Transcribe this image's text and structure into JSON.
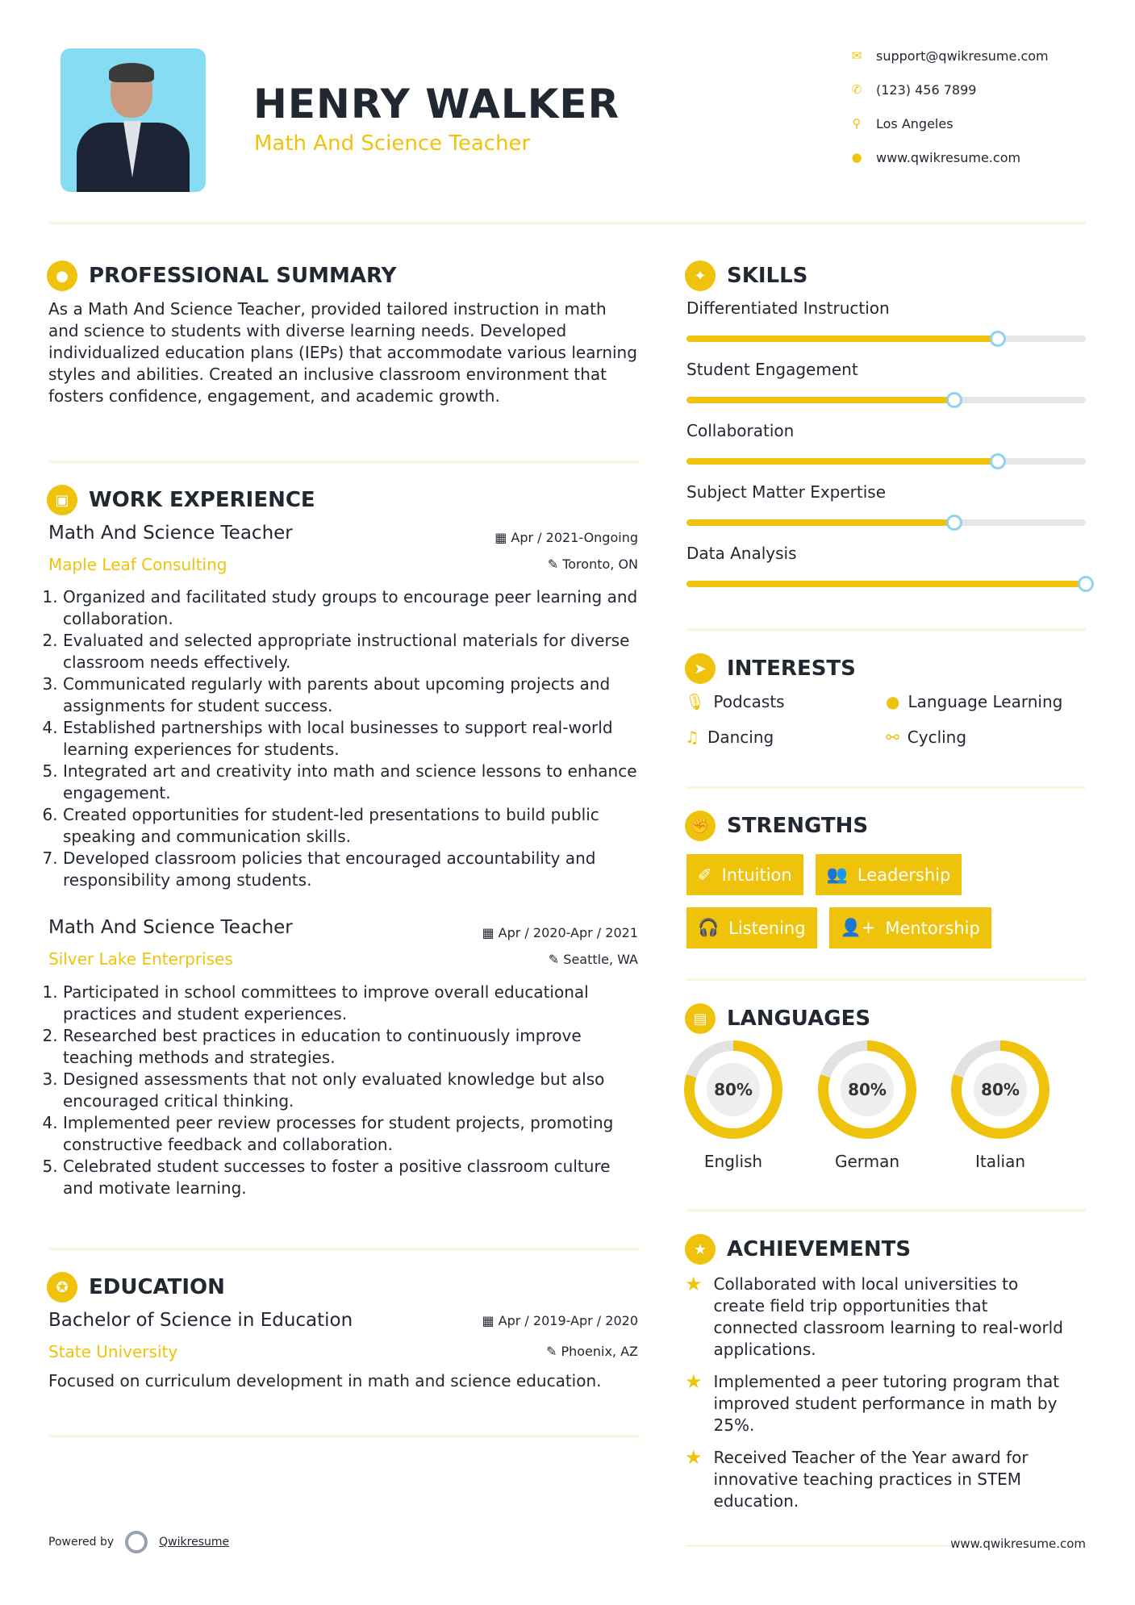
{
  "header": {
    "name": "HENRY WALKER",
    "title": "Math And Science Teacher",
    "contacts": [
      {
        "icon": "envelope-icon",
        "text": "support@qwikresume.com"
      },
      {
        "icon": "phone-icon",
        "text": "(123) 456 7899"
      },
      {
        "icon": "map-pin-icon",
        "text": "Los Angeles"
      },
      {
        "icon": "globe-icon",
        "text": "www.qwikresume.com"
      }
    ]
  },
  "summary": {
    "heading": "PROFESSIONAL SUMMARY",
    "text": "As a Math And Science Teacher, provided tailored instruction in math and science to students with diverse learning needs. Developed individualized education plans (IEPs) that accommodate various learning styles and abilities. Created an inclusive classroom environment that fosters confidence, engagement, and academic growth."
  },
  "work": {
    "heading": "WORK EXPERIENCE",
    "jobs": [
      {
        "title": "Math And Science Teacher",
        "date": "Apr / 2021-Ongoing",
        "company": "Maple Leaf Consulting",
        "location": "Toronto, ON",
        "bullets": [
          "Organized and facilitated study groups to encourage peer learning and collaboration.",
          "Evaluated and selected appropriate instructional materials for diverse classroom needs effectively.",
          "Communicated regularly with parents about upcoming projects and assignments for student success.",
          "Established partnerships with local businesses to support real-world learning experiences for students.",
          "Integrated art and creativity into math and science lessons to enhance engagement.",
          "Created opportunities for student-led presentations to build public speaking and communication skills.",
          "Developed classroom policies that encouraged accountability and responsibility among students."
        ]
      },
      {
        "title": "Math And Science Teacher",
        "date": "Apr / 2020-Apr / 2021",
        "company": "Silver Lake Enterprises",
        "location": "Seattle, WA",
        "bullets": [
          "Participated in school committees to improve overall educational practices and student experiences.",
          "Researched best practices in education to continuously improve teaching methods and strategies.",
          "Designed assessments that not only evaluated knowledge but also encouraged critical thinking.",
          "Implemented peer review processes for student projects, promoting constructive feedback and collaboration.",
          "Celebrated student successes to foster a positive classroom culture and motivate learning."
        ]
      }
    ]
  },
  "education": {
    "heading": "EDUCATION",
    "degree": "Bachelor of Science in Education",
    "date": "Apr / 2019-Apr / 2020",
    "school": "State University",
    "location": "Phoenix, AZ",
    "description": "Focused on curriculum development in math and science education."
  },
  "skills": {
    "heading": "SKILLS",
    "items": [
      {
        "name": "Differentiated Instruction",
        "level": 78
      },
      {
        "name": "Student Engagement",
        "level": 67
      },
      {
        "name": "Collaboration",
        "level": 78
      },
      {
        "name": "Subject Matter Expertise",
        "level": 67
      },
      {
        "name": "Data Analysis",
        "level": 100
      }
    ]
  },
  "interests": {
    "heading": "INTERESTS",
    "items": [
      {
        "icon": "microphone-icon",
        "label": "Podcasts"
      },
      {
        "icon": "globe-icon",
        "label": "Language Learning"
      },
      {
        "icon": "music-note-icon",
        "label": "Dancing"
      },
      {
        "icon": "bicycle-icon",
        "label": "Cycling"
      }
    ]
  },
  "strengths": {
    "heading": "STRENGTHS",
    "items": [
      {
        "icon": "magic-wand-icon",
        "label": "Intuition"
      },
      {
        "icon": "users-icon",
        "label": "Leadership"
      },
      {
        "icon": "headphones-icon",
        "label": "Listening"
      },
      {
        "icon": "user-plus-icon",
        "label": "Mentorship"
      }
    ]
  },
  "languages": {
    "heading": "LANGUAGES",
    "items": [
      {
        "name": "English",
        "level": 80,
        "label": "80%"
      },
      {
        "name": "German",
        "level": 80,
        "label": "80%"
      },
      {
        "name": "Italian",
        "level": 80,
        "label": "80%"
      }
    ]
  },
  "achievements": {
    "heading": "ACHIEVEMENTS",
    "items": [
      "Collaborated with local universities to create field trip opportunities that connected classroom learning to real-world applications.",
      "Implemented a peer tutoring program that improved student performance in math by 25%.",
      "Received Teacher of the Year award for innovative teaching practices in STEM education."
    ]
  },
  "footer": {
    "powered_by": "Powered by",
    "brand": "Qwikresume",
    "website": "www.qwikresume.com"
  },
  "colors": {
    "accent": "#efc20b",
    "text": "#222831",
    "knob": "#8fd3ef"
  }
}
